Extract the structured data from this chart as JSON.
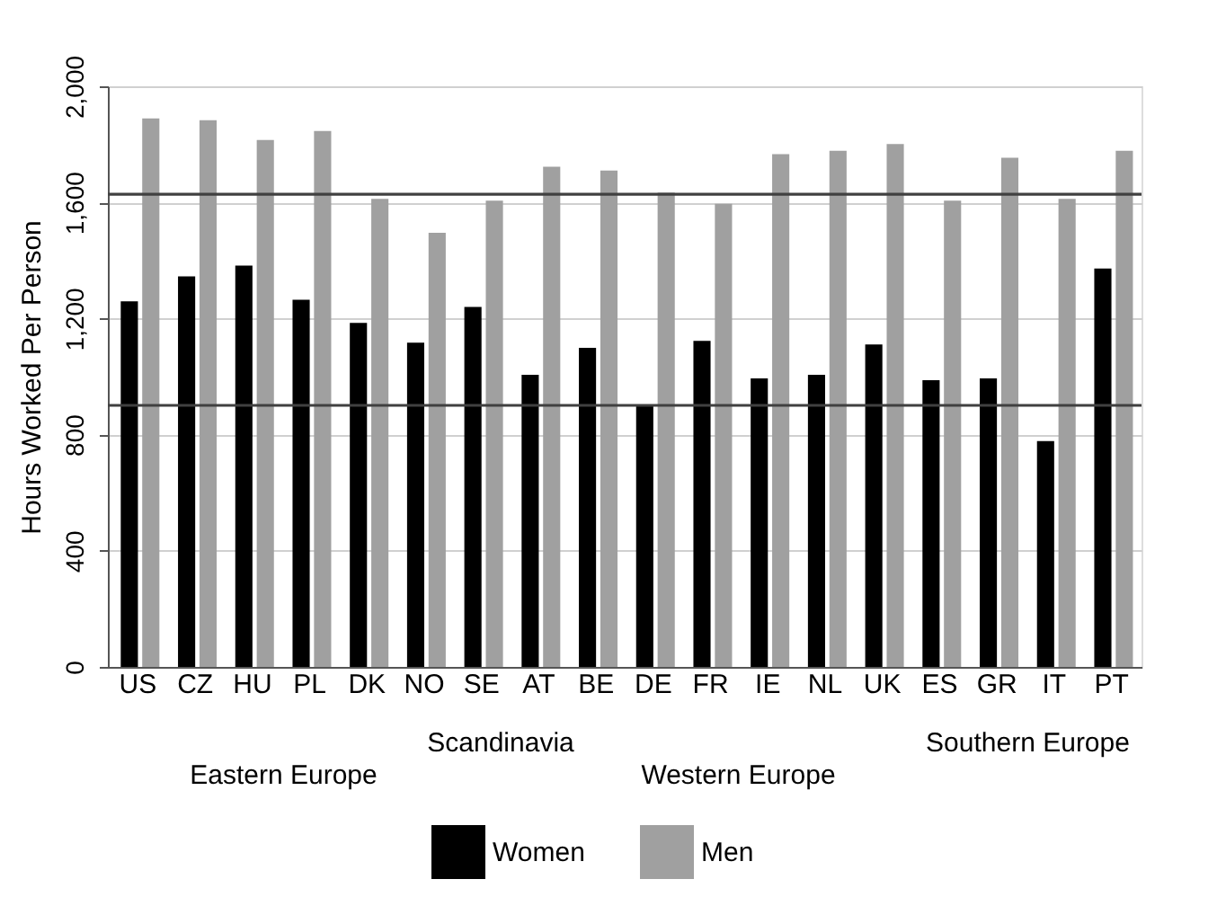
{
  "chart_data": {
    "type": "bar",
    "ylabel": "Hours Worked Per Person",
    "categories": [
      "US",
      "CZ",
      "HU",
      "PL",
      "DK",
      "NO",
      "SE",
      "AT",
      "BE",
      "DE",
      "FR",
      "IE",
      "NL",
      "UK",
      "ES",
      "GR",
      "IT",
      "PT"
    ],
    "series": [
      {
        "name": "Women",
        "color": "#000000",
        "values": [
          1259,
          1345,
          1382,
          1265,
          1185,
          1117,
          1240,
          1006,
          1099,
          901,
          1123,
          994,
          1006,
          1111,
          988,
          994,
          778,
          1372
        ]
      },
      {
        "name": "Men",
        "color": "#a0a0a0",
        "values": [
          1889,
          1883,
          1815,
          1846,
          1612,
          1495,
          1606,
          1723,
          1710,
          1634,
          1595,
          1766,
          1778,
          1801,
          1606,
          1754,
          1612,
          1778
        ]
      }
    ],
    "ylim": [
      0,
      2000
    ],
    "yticks": [
      0,
      {
        "value": 400,
        "label": "400"
      },
      {
        "value": 800,
        "label": "800"
      },
      {
        "value": 1200,
        "label": "1,200"
      },
      {
        "value": 1600,
        "label": "1,600"
      },
      {
        "value": 2000,
        "label": "2,000"
      }
    ],
    "ref_lines": [
      {
        "axis": "y",
        "value": 1628,
        "color": "#404040"
      },
      {
        "axis": "y",
        "value": 901,
        "color": "#404040"
      }
    ],
    "annotations": [
      "Eastern Europe",
      "Scandinavia",
      "Western Europe",
      "Southern Europe"
    ],
    "grid": "y",
    "legend": "bottom"
  }
}
